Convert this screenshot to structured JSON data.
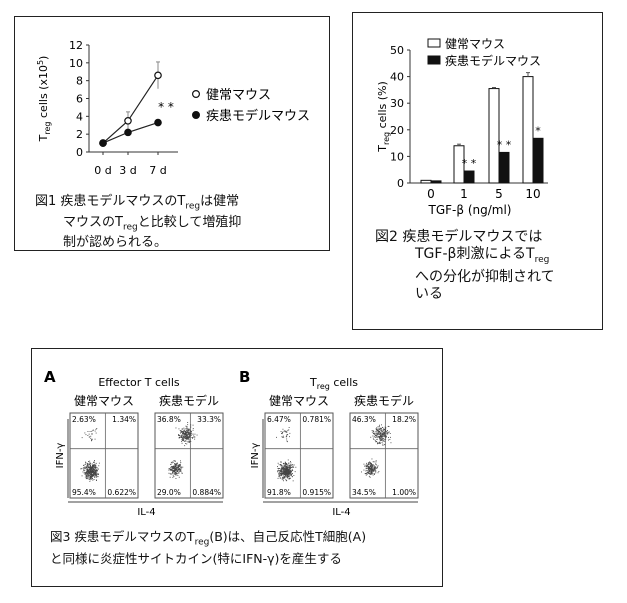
{
  "fig1": {
    "chart_data": {
      "type": "line",
      "x": [
        "0 d",
        "3 d",
        "7 d"
      ],
      "ylabel": "T reg cells (x10^5)",
      "ylabel_base": "T",
      "ylabel_sub": "reg",
      "ylabel_rest": " cells (x10",
      "ylabel_sup": "5",
      "ylabel_end": ")",
      "ylim": [
        0,
        12
      ],
      "yticks": [
        0,
        2,
        4,
        6,
        8,
        10,
        12
      ],
      "series": [
        {
          "name": "健常マウス",
          "marker": "open",
          "values": [
            1.0,
            3.5,
            8.6
          ],
          "errors": [
            0,
            1.0,
            1.5
          ]
        },
        {
          "name": "疾患モデルマウス",
          "marker": "filled",
          "values": [
            1.0,
            2.2,
            3.3
          ],
          "errors": [
            0,
            0,
            0
          ]
        }
      ],
      "annotation": "* *"
    },
    "caption": {
      "l1a": "図1 疾患モデルマウスのT",
      "l1sub": "reg",
      "l1b": "は健常",
      "l2a": "マウスのT",
      "l2sub": "reg",
      "l2b": "と比較して増殖抑",
      "l3": "制が認められる。"
    }
  },
  "fig2": {
    "chart_data": {
      "type": "bar",
      "categories": [
        "0",
        "1",
        "5",
        "10"
      ],
      "xlabel": "TGF-β (ng/ml)",
      "ylabel_base": "T",
      "ylabel_sub": "reg",
      "ylabel_rest": " cells (%)",
      "ylim": [
        0,
        50
      ],
      "yticks": [
        0,
        10,
        20,
        30,
        40,
        50
      ],
      "series": [
        {
          "name": "健常マウス",
          "fill": "open",
          "values": [
            1.0,
            14.0,
            35.5,
            40.0
          ],
          "errors": [
            0,
            0.6,
            0.4,
            1.5
          ]
        },
        {
          "name": "疾患モデルマウス",
          "fill": "filled",
          "values": [
            0.8,
            4.5,
            11.5,
            16.8
          ],
          "errors": [
            0,
            0,
            0,
            0
          ]
        }
      ],
      "annotations": [
        "",
        "* *",
        "* *",
        "*"
      ]
    },
    "caption": {
      "l1": "図2 疾患モデルマウスでは",
      "l2a": "TGF-β刺激によるT",
      "l2sub": "reg",
      "l3": "への分化が抑制されて",
      "l4": "いる"
    }
  },
  "fig3": {
    "panelA": {
      "letter": "A",
      "title": "Effector T cells",
      "plots": [
        {
          "label": "健常マウス",
          "q": [
            "2.63%",
            "1.34%",
            "95.4%",
            "0.622%"
          ]
        },
        {
          "label": "疾患モデル",
          "q": [
            "36.8%",
            "33.3%",
            "29.0%",
            "0.884%"
          ]
        }
      ],
      "ylabel": "IFN-γ",
      "xlabel": "IL-4"
    },
    "panelB": {
      "letter": "B",
      "title_base": "T",
      "title_sub": "reg",
      "title_rest": " cells",
      "plots": [
        {
          "label": "健常マウス",
          "q": [
            "6.47%",
            "0.781%",
            "91.8%",
            "0.915%"
          ]
        },
        {
          "label": "疾患モデル",
          "q": [
            "46.3%",
            "18.2%",
            "34.5%",
            "1.00%"
          ]
        }
      ],
      "ylabel": "IFN-γ",
      "xlabel": "IL-4"
    },
    "caption": {
      "l1a": "図3 疾患モデルマウスのT",
      "l1sub": "reg",
      "l1b": "(B)は、自己反応性T細胞(A)",
      "l2": "と同様に炎症性サイトカイン(特にIFN-γ)を産生する"
    }
  }
}
